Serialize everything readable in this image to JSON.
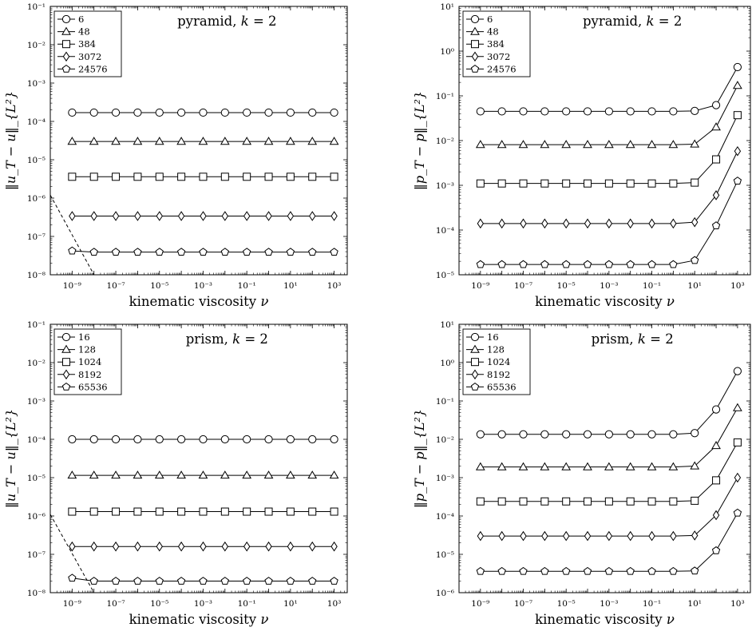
{
  "chart_data": [
    {
      "type": "line",
      "title": "pyramid, k = 2",
      "title_parts": {
        "name": "pyramid, ",
        "var": "k",
        "rest": " = 2"
      },
      "xlabel": "kinematic viscosity ν",
      "xlabel_parts": {
        "text": "kinematic viscosity ",
        "sym": "ν"
      },
      "ylabel": "‖u_T − u‖_{L²}",
      "x_scale": "log",
      "y_scale": "log",
      "xlim_exp": [
        -10,
        3.6
      ],
      "ylim_exp": [
        -8,
        -1
      ],
      "x_tick_labels": [
        "10⁻⁹",
        "10⁻⁷",
        "10⁻⁵",
        "10⁻³",
        "10⁻¹",
        "10¹",
        "10³"
      ],
      "y_tick_labels": [
        "10⁻⁸",
        "10⁻⁷",
        "10⁻⁶",
        "10⁻⁵",
        "10⁻⁴",
        "10⁻³",
        "10⁻²",
        "10⁻¹"
      ],
      "legend_position": "top-left",
      "x": [
        1e-09,
        1e-08,
        1e-07,
        1e-06,
        1e-05,
        0.0001,
        0.001,
        0.01,
        0.1,
        1,
        10,
        100,
        1000
      ],
      "series": [
        {
          "name": "6",
          "marker": "circle",
          "values": [
            0.00017,
            0.00017,
            0.00017,
            0.00017,
            0.00017,
            0.00017,
            0.00017,
            0.00017,
            0.00017,
            0.00017,
            0.00017,
            0.00017,
            0.00017
          ]
        },
        {
          "name": "48",
          "marker": "triangle",
          "values": [
            3e-05,
            3e-05,
            3e-05,
            3e-05,
            3e-05,
            3e-05,
            3e-05,
            3e-05,
            3e-05,
            3e-05,
            3e-05,
            3e-05,
            3e-05
          ]
        },
        {
          "name": "384",
          "marker": "square",
          "values": [
            3.6e-06,
            3.6e-06,
            3.6e-06,
            3.6e-06,
            3.6e-06,
            3.6e-06,
            3.6e-06,
            3.6e-06,
            3.6e-06,
            3.6e-06,
            3.6e-06,
            3.6e-06,
            3.6e-06
          ]
        },
        {
          "name": "3072",
          "marker": "diamond",
          "values": [
            3.4e-07,
            3.4e-07,
            3.4e-07,
            3.4e-07,
            3.4e-07,
            3.4e-07,
            3.4e-07,
            3.4e-07,
            3.4e-07,
            3.4e-07,
            3.4e-07,
            3.4e-07,
            3.4e-07
          ]
        },
        {
          "name": "24576",
          "marker": "pentagon",
          "values": [
            4.2e-08,
            3.9e-08,
            3.9e-08,
            3.9e-08,
            3.9e-08,
            3.9e-08,
            3.9e-08,
            3.9e-08,
            3.9e-08,
            3.9e-08,
            3.9e-08,
            3.9e-08,
            3.9e-08
          ]
        }
      ],
      "reference_line": {
        "x": [
          1e-10,
          1e-08
        ],
        "y": [
          1.2e-06,
          1e-08
        ]
      }
    },
    {
      "type": "line",
      "title": "pyramid, k = 2",
      "title_parts": {
        "name": "pyramid, ",
        "var": "k",
        "rest": " = 2"
      },
      "xlabel": "kinematic viscosity ν",
      "xlabel_parts": {
        "text": "kinematic viscosity ",
        "sym": "ν"
      },
      "ylabel": "‖p_T − p‖_{L²}",
      "x_scale": "log",
      "y_scale": "log",
      "xlim_exp": [
        -10,
        3.6
      ],
      "ylim_exp": [
        -5,
        1
      ],
      "x_tick_labels": [
        "10⁻⁹",
        "10⁻⁷",
        "10⁻⁵",
        "10⁻³",
        "10⁻¹",
        "10¹",
        "10³"
      ],
      "y_tick_labels": [
        "10⁻⁵",
        "10⁻⁴",
        "10⁻³",
        "10⁻²",
        "10⁻¹",
        "10⁰",
        "10¹"
      ],
      "legend_position": "top-left",
      "x": [
        1e-09,
        1e-08,
        1e-07,
        1e-06,
        1e-05,
        0.0001,
        0.001,
        0.01,
        0.1,
        1,
        10,
        100,
        1000
      ],
      "series": [
        {
          "name": "6",
          "marker": "circle",
          "values": [
            0.045,
            0.045,
            0.045,
            0.045,
            0.045,
            0.045,
            0.045,
            0.045,
            0.045,
            0.045,
            0.046,
            0.062,
            0.44
          ]
        },
        {
          "name": "48",
          "marker": "triangle",
          "values": [
            0.0081,
            0.0081,
            0.0081,
            0.0081,
            0.0081,
            0.0081,
            0.0081,
            0.0081,
            0.0081,
            0.0081,
            0.0083,
            0.02,
            0.17
          ]
        },
        {
          "name": "384",
          "marker": "square",
          "values": [
            0.0011,
            0.0011,
            0.0011,
            0.0011,
            0.0011,
            0.0011,
            0.0011,
            0.0011,
            0.0011,
            0.0011,
            0.00115,
            0.0038,
            0.037
          ]
        },
        {
          "name": "3072",
          "marker": "diamond",
          "values": [
            0.00014,
            0.00014,
            0.00014,
            0.00014,
            0.00014,
            0.00014,
            0.00014,
            0.00014,
            0.00014,
            0.00014,
            0.00015,
            0.0006,
            0.0058
          ]
        },
        {
          "name": "24576",
          "marker": "pentagon",
          "values": [
            1.7e-05,
            1.7e-05,
            1.7e-05,
            1.7e-05,
            1.7e-05,
            1.7e-05,
            1.7e-05,
            1.7e-05,
            1.7e-05,
            1.7e-05,
            2.1e-05,
            0.000125,
            0.00125
          ]
        }
      ]
    },
    {
      "type": "line",
      "title": "prism, k = 2",
      "title_parts": {
        "name": "prism, ",
        "var": "k",
        "rest": " = 2"
      },
      "xlabel": "kinematic viscosity ν",
      "xlabel_parts": {
        "text": "kinematic viscosity ",
        "sym": "ν"
      },
      "ylabel": "‖u_T − u‖_{L²}",
      "x_scale": "log",
      "y_scale": "log",
      "xlim_exp": [
        -10,
        3.6
      ],
      "ylim_exp": [
        -8,
        -1
      ],
      "x_tick_labels": [
        "10⁻⁹",
        "10⁻⁷",
        "10⁻⁵",
        "10⁻³",
        "10⁻¹",
        "10¹",
        "10³"
      ],
      "y_tick_labels": [
        "10⁻⁸",
        "10⁻⁷",
        "10⁻⁶",
        "10⁻⁵",
        "10⁻⁴",
        "10⁻³",
        "10⁻²",
        "10⁻¹"
      ],
      "legend_position": "top-left",
      "x": [
        1e-09,
        1e-08,
        1e-07,
        1e-06,
        1e-05,
        0.0001,
        0.001,
        0.01,
        0.1,
        1,
        10,
        100,
        1000
      ],
      "series": [
        {
          "name": "16",
          "marker": "circle",
          "values": [
            0.0001,
            0.0001,
            0.0001,
            0.0001,
            0.0001,
            0.0001,
            0.0001,
            0.0001,
            0.0001,
            0.0001,
            0.0001,
            0.0001,
            0.0001
          ]
        },
        {
          "name": "128",
          "marker": "triangle",
          "values": [
            1.15e-05,
            1.15e-05,
            1.15e-05,
            1.15e-05,
            1.15e-05,
            1.15e-05,
            1.15e-05,
            1.15e-05,
            1.15e-05,
            1.15e-05,
            1.15e-05,
            1.15e-05,
            1.15e-05
          ]
        },
        {
          "name": "1024",
          "marker": "square",
          "values": [
            1.3e-06,
            1.3e-06,
            1.3e-06,
            1.3e-06,
            1.3e-06,
            1.3e-06,
            1.3e-06,
            1.3e-06,
            1.3e-06,
            1.3e-06,
            1.3e-06,
            1.3e-06,
            1.3e-06
          ]
        },
        {
          "name": "8192",
          "marker": "diamond",
          "values": [
            1.6e-07,
            1.6e-07,
            1.6e-07,
            1.6e-07,
            1.6e-07,
            1.6e-07,
            1.6e-07,
            1.6e-07,
            1.6e-07,
            1.6e-07,
            1.6e-07,
            1.6e-07,
            1.6e-07
          ]
        },
        {
          "name": "65536",
          "marker": "pentagon",
          "values": [
            2.4e-08,
            2e-08,
            2e-08,
            2e-08,
            2e-08,
            2e-08,
            2e-08,
            2e-08,
            2e-08,
            2e-08,
            2e-08,
            2e-08,
            2e-08
          ]
        }
      ],
      "reference_line": {
        "x": [
          1e-10,
          1e-08
        ],
        "y": [
          1.1e-06,
          1e-08
        ]
      }
    },
    {
      "type": "line",
      "title": "prism, k = 2",
      "title_parts": {
        "name": "prism, ",
        "var": "k",
        "rest": " = 2"
      },
      "xlabel": "kinematic viscosity ν",
      "xlabel_parts": {
        "text": "kinematic viscosity ",
        "sym": "ν"
      },
      "ylabel": "‖p_T − p‖_{L²}",
      "x_scale": "log",
      "y_scale": "log",
      "xlim_exp": [
        -10,
        3.6
      ],
      "ylim_exp": [
        -6,
        1
      ],
      "x_tick_labels": [
        "10⁻⁹",
        "10⁻⁷",
        "10⁻⁵",
        "10⁻³",
        "10⁻¹",
        "10¹",
        "10³"
      ],
      "y_tick_labels": [
        "10⁻⁶",
        "10⁻⁵",
        "10⁻⁴",
        "10⁻³",
        "10⁻²",
        "10⁻¹",
        "10⁰",
        "10¹"
      ],
      "legend_position": "top-left",
      "x": [
        1e-09,
        1e-08,
        1e-07,
        1e-06,
        1e-05,
        0.0001,
        0.001,
        0.01,
        0.1,
        1,
        10,
        100,
        1000
      ],
      "series": [
        {
          "name": "16",
          "marker": "circle",
          "values": [
            0.0135,
            0.0135,
            0.0135,
            0.0135,
            0.0135,
            0.0135,
            0.0135,
            0.0135,
            0.0135,
            0.0135,
            0.0145,
            0.06,
            0.6
          ]
        },
        {
          "name": "128",
          "marker": "triangle",
          "values": [
            0.0019,
            0.0019,
            0.0019,
            0.0019,
            0.0019,
            0.0019,
            0.0019,
            0.0019,
            0.0019,
            0.0019,
            0.002,
            0.0068,
            0.066
          ]
        },
        {
          "name": "1024",
          "marker": "square",
          "values": [
            0.00024,
            0.00024,
            0.00024,
            0.00024,
            0.00024,
            0.00024,
            0.00024,
            0.00024,
            0.00024,
            0.00024,
            0.00025,
            0.00085,
            0.0083
          ]
        },
        {
          "name": "8192",
          "marker": "diamond",
          "values": [
            3e-05,
            3e-05,
            3e-05,
            3e-05,
            3e-05,
            3e-05,
            3e-05,
            3e-05,
            3e-05,
            3e-05,
            3.1e-05,
            0.000105,
            0.001
          ]
        },
        {
          "name": "65536",
          "marker": "pentagon",
          "values": [
            3.6e-06,
            3.6e-06,
            3.6e-06,
            3.6e-06,
            3.6e-06,
            3.6e-06,
            3.6e-06,
            3.6e-06,
            3.6e-06,
            3.6e-06,
            3.7e-06,
            1.25e-05,
            0.00012
          ]
        }
      ]
    }
  ]
}
